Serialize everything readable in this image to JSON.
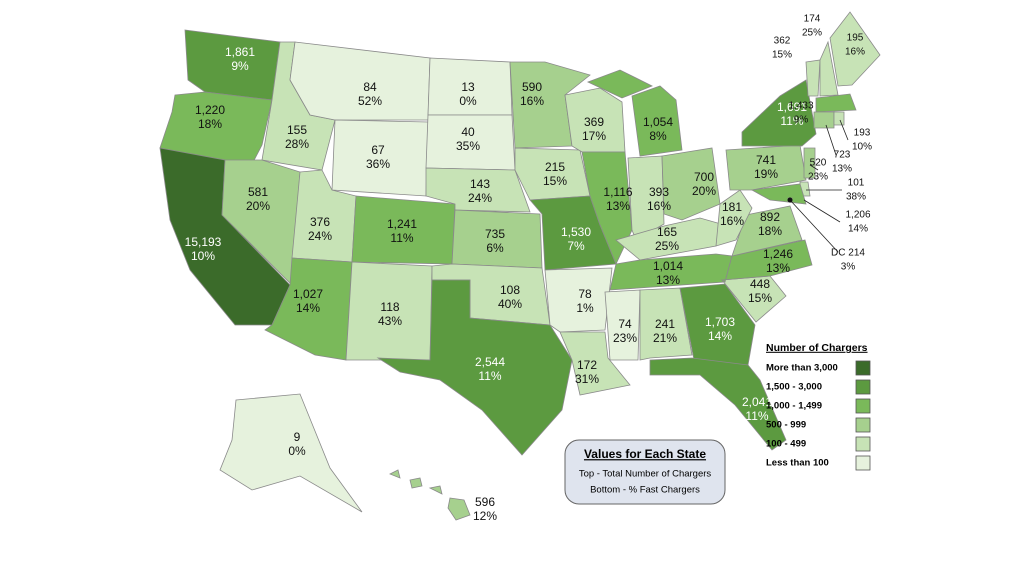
{
  "legend": {
    "title": "Number of Chargers",
    "items": [
      {
        "label": "More than 3,000",
        "color": "#3b6b2a"
      },
      {
        "label": "1,500 - 3,000",
        "color": "#5c9a40"
      },
      {
        "label": "1,000 - 1,499",
        "color": "#7ab95a"
      },
      {
        "label": "500 - 999",
        "color": "#a6d08e"
      },
      {
        "label": "100 - 499",
        "color": "#c7e3b6"
      },
      {
        "label": "Less than 100",
        "color": "#e6f2dd"
      }
    ]
  },
  "info_box": {
    "title": "Values for Each State",
    "lines": [
      "Top - Total Number of Chargers",
      "Bottom - % Fast Chargers"
    ]
  },
  "states": [
    {
      "chargers": "1,861",
      "fast": "9%",
      "color": "#5c9a40"
    },
    {
      "chargers": "1,220",
      "fast": "18%",
      "color": "#7ab95a"
    },
    {
      "chargers": "15,193",
      "fast": "10%",
      "color": "#3b6b2a"
    },
    {
      "chargers": "155",
      "fast": "28%",
      "color": "#c7e3b6"
    },
    {
      "chargers": "581",
      "fast": "20%",
      "color": "#a6d08e"
    },
    {
      "chargers": "84",
      "fast": "52%",
      "color": "#e6f2dd"
    },
    {
      "chargers": "67",
      "fast": "36%",
      "color": "#e6f2dd"
    },
    {
      "chargers": "376",
      "fast": "24%",
      "color": "#c7e3b6"
    },
    {
      "chargers": "1,241",
      "fast": "11%",
      "color": "#7ab95a"
    },
    {
      "chargers": "1,027",
      "fast": "14%",
      "color": "#7ab95a"
    },
    {
      "chargers": "118",
      "fast": "43%",
      "color": "#c7e3b6"
    },
    {
      "chargers": "13",
      "fast": "0%",
      "color": "#e6f2dd"
    },
    {
      "chargers": "40",
      "fast": "35%",
      "color": "#e6f2dd"
    },
    {
      "chargers": "143",
      "fast": "24%",
      "color": "#c7e3b6"
    },
    {
      "chargers": "735",
      "fast": "6%",
      "color": "#a6d08e"
    },
    {
      "chargers": "108",
      "fast": "40%",
      "color": "#c7e3b6"
    },
    {
      "chargers": "2,544",
      "fast": "11%",
      "color": "#5c9a40"
    },
    {
      "chargers": "590",
      "fast": "16%",
      "color": "#a6d08e"
    },
    {
      "chargers": "215",
      "fast": "15%",
      "color": "#c7e3b6"
    },
    {
      "chargers": "1,530",
      "fast": "7%",
      "color": "#5c9a40"
    },
    {
      "chargers": "78",
      "fast": "1%",
      "color": "#e6f2dd"
    },
    {
      "chargers": "172",
      "fast": "31%",
      "color": "#c7e3b6"
    },
    {
      "chargers": "369",
      "fast": "17%",
      "color": "#c7e3b6"
    },
    {
      "chargers": "1,116",
      "fast": "13%",
      "color": "#7ab95a"
    },
    {
      "chargers": "1,054",
      "fast": "8%",
      "color": "#7ab95a"
    },
    {
      "chargers": "393",
      "fast": "16%",
      "color": "#c7e3b6"
    },
    {
      "chargers": "700",
      "fast": "20%",
      "color": "#a6d08e"
    },
    {
      "chargers": "165",
      "fast": "25%",
      "color": "#c7e3b6"
    },
    {
      "chargers": "1,014",
      "fast": "13%",
      "color": "#7ab95a"
    },
    {
      "chargers": "74",
      "fast": "23%",
      "color": "#e6f2dd"
    },
    {
      "chargers": "241",
      "fast": "21%",
      "color": "#c7e3b6"
    },
    {
      "chargers": "1,703",
      "fast": "14%",
      "color": "#5c9a40"
    },
    {
      "chargers": "2,041",
      "fast": "11%",
      "color": "#5c9a40"
    },
    {
      "chargers": "448",
      "fast": "15%",
      "color": "#c7e3b6"
    },
    {
      "chargers": "1,246",
      "fast": "13%",
      "color": "#7ab95a"
    },
    {
      "chargers": "892",
      "fast": "18%",
      "color": "#a6d08e"
    },
    {
      "chargers": "181",
      "fast": "16%",
      "color": "#c7e3b6"
    },
    {
      "chargers": "741",
      "fast": "19%",
      "color": "#a6d08e"
    },
    {
      "chargers": "1,691",
      "fast": "11%",
      "color": "#5c9a40"
    },
    {
      "chargers": "362",
      "fast": "15%",
      "color": "#c7e3b6"
    },
    {
      "chargers": "174",
      "fast": "25%",
      "color": "#c7e3b6"
    },
    {
      "chargers": "195",
      "fast": "16%",
      "color": "#c7e3b6"
    },
    {
      "chargers": "1,433",
      "fast": "9%",
      "color": "#7ab95a"
    },
    {
      "chargers": "723",
      "fast": "13%",
      "color": "#a6d08e"
    },
    {
      "chargers": "193",
      "fast": "10%",
      "color": "#c7e3b6"
    },
    {
      "chargers": "520",
      "fast": "23%",
      "color": "#a6d08e"
    },
    {
      "chargers": "101",
      "fast": "38%",
      "color": "#c7e3b6"
    },
    {
      "chargers": "1,206",
      "fast": "14%",
      "color": "#7ab95a"
    },
    {
      "chargers": "DC 214",
      "fast": "3%",
      "color": "#c7e3b6"
    },
    {
      "chargers": "9",
      "fast": "0%",
      "color": "#e6f2dd"
    },
    {
      "chargers": "596",
      "fast": "12%",
      "color": "#a6d08e"
    }
  ]
}
